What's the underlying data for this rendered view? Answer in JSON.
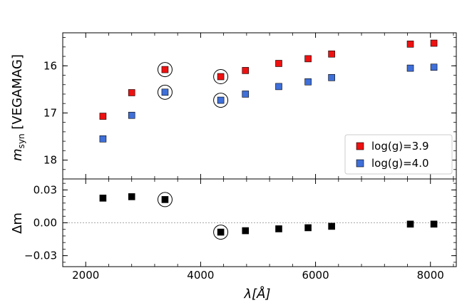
{
  "chart_data": [
    {
      "type": "scatter",
      "panel": "top",
      "ylabel_base": "m",
      "ylabel_sub": "syn",
      "ylabel_rest": " [VEGAMAG]",
      "xlim": [
        1600,
        8450
      ],
      "ylim": [
        18.4,
        15.3
      ],
      "y_inverted": true,
      "yticks": [
        16,
        17,
        18
      ],
      "ytick_labels": [
        "16",
        "17",
        "18"
      ],
      "legend": {
        "position": "lower-right",
        "entries": [
          "log(g)=3.9",
          "log(g)=4.0"
        ]
      },
      "series": [
        {
          "name": "log(g)=3.9",
          "color": "#ee1111",
          "marker": "square",
          "x": [
            2300,
            2800,
            3380,
            4350,
            4780,
            5360,
            5870,
            6280,
            7650,
            8060
          ],
          "y": [
            17.07,
            16.57,
            16.08,
            16.23,
            16.1,
            15.95,
            15.85,
            15.75,
            15.54,
            15.52
          ]
        },
        {
          "name": "log(g)=4.0",
          "color": "#3f6fd8",
          "marker": "square",
          "x": [
            2300,
            2800,
            3380,
            4350,
            4780,
            5360,
            5870,
            6280,
            7650,
            8060
          ],
          "y": [
            17.55,
            17.05,
            16.56,
            16.73,
            16.6,
            16.44,
            16.34,
            16.25,
            16.05,
            16.03
          ]
        }
      ],
      "circled_x": [
        3380,
        4350
      ]
    },
    {
      "type": "scatter",
      "panel": "bottom",
      "ylabel": "Δm",
      "xlabel_base": "λ[Å]",
      "xlim": [
        1600,
        8450
      ],
      "ylim": [
        -0.04,
        0.04
      ],
      "yticks": [
        0.03,
        0.0,
        -0.03
      ],
      "ytick_labels": [
        "0.03",
        "0.00",
        "−0.03"
      ],
      "xticks": [
        2000,
        4000,
        6000,
        8000
      ],
      "xtick_labels": [
        "2000",
        "4000",
        "6000",
        "8000"
      ],
      "reference_line": 0.0,
      "series": [
        {
          "color": "#000000",
          "marker": "square",
          "x": [
            2300,
            2800,
            3380,
            4350,
            4780,
            5360,
            5870,
            6280,
            7650,
            8060
          ],
          "y": [
            0.0225,
            0.0238,
            0.0212,
            -0.0085,
            -0.0072,
            -0.0055,
            -0.0045,
            -0.0032,
            -0.0012,
            -0.0012
          ]
        }
      ],
      "circled_x": [
        3380,
        4350
      ]
    }
  ]
}
